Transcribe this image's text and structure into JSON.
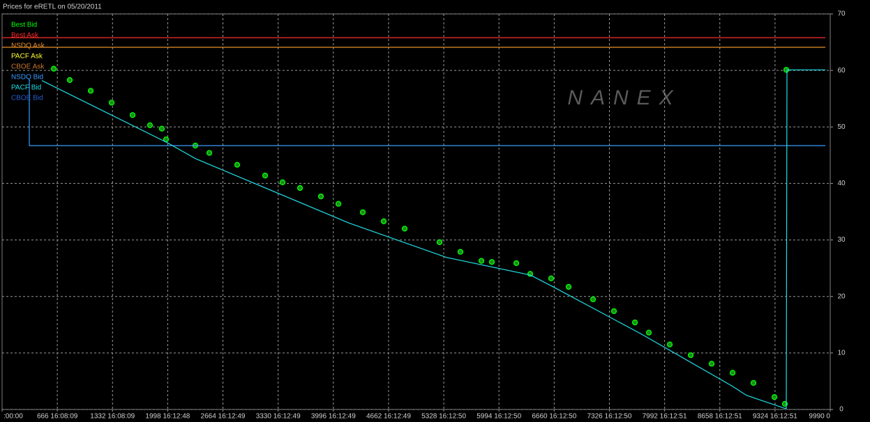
{
  "chart_data": {
    "type": "line",
    "title": "Prices for  eRETL  on  05/20/2011",
    "watermark": "NANEX",
    "xlim": [
      0,
      9990
    ],
    "ylim": [
      0,
      70
    ],
    "yticks": [
      0,
      10,
      20,
      30,
      40,
      50,
      60,
      70
    ],
    "xticks": [
      {
        "value": 0,
        "label": ":00:00"
      },
      {
        "value": 666,
        "label": "666 16:08:09"
      },
      {
        "value": 1332,
        "label": "1332 16:08:09"
      },
      {
        "value": 1998,
        "label": "1998 16:12:48"
      },
      {
        "value": 2664,
        "label": "2664 16:12:49"
      },
      {
        "value": 3330,
        "label": "3330 16:12:49"
      },
      {
        "value": 3996,
        "label": "3996 16:12:49"
      },
      {
        "value": 4662,
        "label": "4662 16:12:49"
      },
      {
        "value": 5328,
        "label": "5328 16:12:50"
      },
      {
        "value": 5994,
        "label": "5994 16:12:50"
      },
      {
        "value": 6660,
        "label": "6660 16:12:50"
      },
      {
        "value": 7326,
        "label": "7326 16:12:50"
      },
      {
        "value": 7992,
        "label": "7992 16:12:51"
      },
      {
        "value": 8658,
        "label": "8658 16:12:51"
      },
      {
        "value": 9324,
        "label": "9324 16:12:51"
      },
      {
        "value": 9990,
        "label": "9990 0"
      }
    ],
    "grid": true,
    "legend": "top-left",
    "series": [
      {
        "name": "Best Bid",
        "color": "#00ff00",
        "mode": "markers",
        "x": [
          623,
          816,
          1069,
          1321,
          1574,
          1784,
          1927,
          1978,
          2331,
          2500,
          2836,
          3173,
          3383,
          3594,
          3846,
          4057,
          4351,
          4604,
          4856,
          5277,
          5529,
          5782,
          5908,
          6203,
          6371,
          6623,
          6834,
          7129,
          7381,
          7634,
          7802,
          8054,
          8307,
          8559,
          8812,
          9064,
          9317,
          9443,
          9460
        ],
        "values": [
          60.3,
          58.3,
          56.4,
          54.3,
          52.1,
          50.3,
          49.7,
          47.8,
          46.7,
          45.4,
          43.3,
          41.4,
          40.2,
          39.2,
          37.7,
          36.4,
          34.9,
          33.3,
          32.0,
          29.6,
          27.9,
          26.3,
          26.1,
          25.9,
          24.0,
          23.2,
          21.7,
          19.5,
          17.4,
          15.4,
          13.6,
          11.5,
          9.6,
          8.1,
          6.5,
          4.7,
          2.2,
          1.0,
          60.1
        ]
      },
      {
        "name": "Best Ask",
        "color": "#ff2a2a",
        "x": [
          0,
          9932
        ],
        "values": [
          65.8,
          65.8
        ]
      },
      {
        "name": "NSDQ Ask",
        "color": "#e8902a",
        "x": [
          0,
          9932
        ],
        "values": [
          64.1,
          64.1
        ]
      },
      {
        "name": "PACF Ask",
        "color": "#ffff30"
      },
      {
        "name": "CBOE Ask",
        "color": "#c87830"
      },
      {
        "name": "NSDQ Bid",
        "color": "#3a9cff",
        "x": [
          328,
          328,
          9932
        ],
        "values": [
          58.3,
          46.7,
          46.7
        ]
      },
      {
        "name": "PACF Bid",
        "color": "#20e0e8",
        "x": [
          480,
          1995,
          2331,
          4183,
          5361,
          6371,
          6623,
          7718,
          8812,
          8980,
          9443,
          9460,
          9468,
          9932
        ],
        "values": [
          58.2,
          47.2,
          44.4,
          33.0,
          26.9,
          23.8,
          21.9,
          13.3,
          4.1,
          2.5,
          0.2,
          0.2,
          60.1,
          60.1
        ]
      },
      {
        "name": "CBOE Bid",
        "color": "#2a5ccc"
      }
    ]
  }
}
